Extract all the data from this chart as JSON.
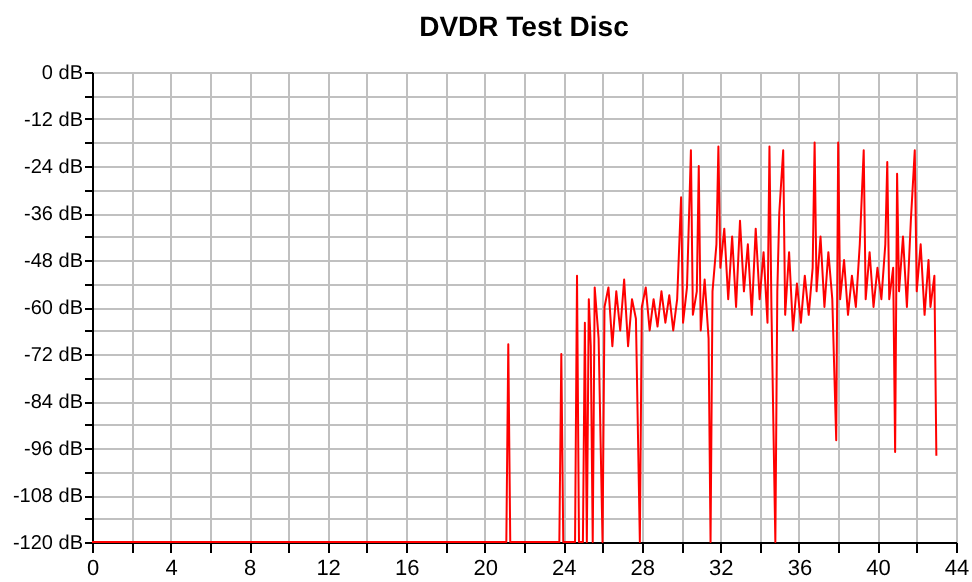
{
  "chart_data": {
    "type": "line",
    "title": "DVDR Test Disc",
    "x": [
      0,
      21.1,
      21.2,
      21.3,
      23.8,
      23.9,
      24.0,
      24.6,
      24.7,
      24.8,
      25.0,
      25.1,
      25.2,
      25.3,
      25.4,
      25.5,
      25.6,
      25.8,
      26.0,
      26.1,
      26.3,
      26.5,
      26.7,
      26.9,
      27.1,
      27.3,
      27.5,
      27.7,
      27.9,
      28.0,
      28.2,
      28.4,
      28.6,
      28.8,
      29.0,
      29.2,
      29.4,
      29.6,
      29.8,
      30.0,
      30.1,
      30.3,
      30.5,
      30.6,
      30.8,
      30.9,
      31.0,
      31.2,
      31.4,
      31.5,
      31.6,
      31.8,
      31.9,
      32.0,
      32.2,
      32.4,
      32.6,
      32.8,
      33.0,
      33.2,
      33.4,
      33.6,
      33.8,
      34.0,
      34.2,
      34.4,
      34.5,
      34.6,
      34.8,
      34.9,
      35.0,
      35.2,
      35.3,
      35.5,
      35.7,
      35.9,
      36.1,
      36.3,
      36.5,
      36.7,
      36.8,
      36.9,
      37.1,
      37.3,
      37.5,
      37.7,
      37.9,
      38.0,
      38.1,
      38.3,
      38.5,
      38.7,
      38.9,
      39.1,
      39.3,
      39.4,
      39.6,
      39.8,
      40.0,
      40.2,
      40.4,
      40.5,
      40.6,
      40.8,
      40.9,
      41.0,
      41.1,
      41.3,
      41.5,
      41.7,
      41.9,
      42.0,
      42.2,
      42.4,
      42.6,
      42.7,
      42.9,
      43.0
    ],
    "series": [
      {
        "color": "#ff0000",
        "values": [
          -120,
          -120,
          -69.5,
          -120,
          -120,
          -72,
          -120,
          -120,
          -52,
          -120,
          -120,
          -64,
          -120,
          -58,
          -70,
          -120,
          -55,
          -68,
          -120,
          -60,
          -55,
          -70,
          -56,
          -66,
          -53,
          -70,
          -58,
          -63,
          -120,
          -60,
          -55,
          -66,
          -58,
          -65,
          -56,
          -64,
          -57,
          -66,
          -58,
          -32,
          -64,
          -55,
          -20,
          -62,
          -56,
          -24,
          -66,
          -53,
          -68,
          -120,
          -56,
          -44,
          -19,
          -50,
          -40,
          -58,
          -42,
          -60,
          -38,
          -56,
          -44,
          -62,
          -40,
          -58,
          -46,
          -64,
          -19,
          -60,
          -120,
          -56,
          -36,
          -20,
          -62,
          -46,
          -66,
          -54,
          -64,
          -52,
          -62,
          -50,
          -18,
          -56,
          -42,
          -60,
          -46,
          -58,
          -94,
          -18,
          -58,
          -48,
          -62,
          -52,
          -60,
          -44,
          -20,
          -58,
          -46,
          -60,
          -50,
          -58,
          -44,
          -23,
          -58,
          -50,
          -97,
          -26,
          -56,
          -42,
          -60,
          -38,
          -20,
          -56,
          -44,
          -62,
          -48,
          -60,
          -52,
          -98
        ]
      }
    ],
    "xlim": [
      0,
      44
    ],
    "xticks": [
      0,
      {
        "value": 2,
        "label": null
      },
      4,
      {
        "value": 6,
        "label": null
      },
      8,
      {
        "value": 10,
        "label": null
      },
      12,
      {
        "value": 14,
        "label": null
      },
      16,
      {
        "value": 18,
        "label": null
      },
      20,
      {
        "value": 22,
        "label": null
      },
      24,
      {
        "value": 26,
        "label": null
      },
      28,
      {
        "value": 30,
        "label": null
      },
      32,
      {
        "value": 34,
        "label": null
      },
      36,
      {
        "value": 38,
        "label": null
      },
      40,
      {
        "value": 42,
        "label": null
      },
      44
    ],
    "ylim": [
      -120,
      0
    ],
    "yticks": [
      {
        "value": 0,
        "label": "0 dB"
      },
      {
        "value": -6,
        "label": null
      },
      {
        "value": -12,
        "label": "-12 dB"
      },
      {
        "value": -18,
        "label": null
      },
      {
        "value": -24,
        "label": "-24 dB"
      },
      {
        "value": -30,
        "label": null
      },
      {
        "value": -36,
        "label": "-36 dB"
      },
      {
        "value": -42,
        "label": null
      },
      {
        "value": -48,
        "label": "-48 dB"
      },
      {
        "value": -54,
        "label": null
      },
      {
        "value": -60,
        "label": "-60 dB"
      },
      {
        "value": -66,
        "label": null
      },
      {
        "value": -72,
        "label": "-72 dB"
      },
      {
        "value": -78,
        "label": null
      },
      {
        "value": -84,
        "label": "-84 dB"
      },
      {
        "value": -90,
        "label": null
      },
      {
        "value": -96,
        "label": "-96 dB"
      },
      {
        "value": -102,
        "label": null
      },
      {
        "value": -108,
        "label": "-108 dB"
      },
      {
        "value": -114,
        "label": null
      },
      {
        "value": -120,
        "label": "-120 dB"
      }
    ],
    "grid": true,
    "legend": false,
    "marker": "none",
    "line_style": "solid"
  }
}
